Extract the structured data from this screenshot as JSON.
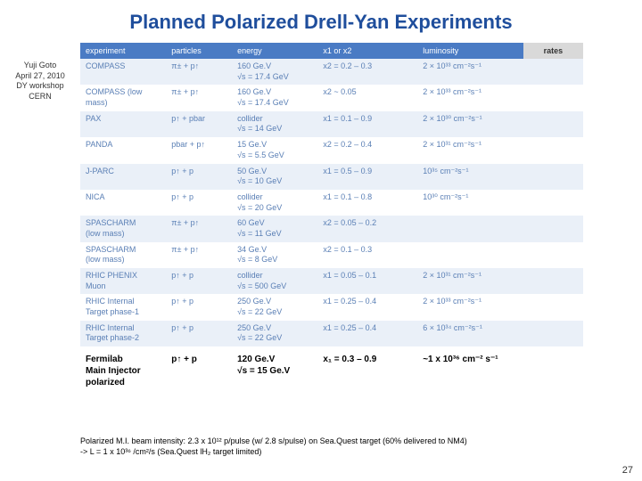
{
  "title": "Planned Polarized Drell-Yan Experiments",
  "sidebar": {
    "line1": "Yuji Goto",
    "line2": "April 27, 2010",
    "line3": "DY workshop",
    "line4": "CERN"
  },
  "headers": {
    "experiment": "experiment",
    "particles": "particles",
    "energy": "energy",
    "x": "x1 or x2",
    "luminosity": "luminosity",
    "rates": "rates"
  },
  "rows": [
    {
      "exp": "COMPASS",
      "part": "π± + p↑",
      "en": "160 Ge.V\n√s = 17.4 GeV",
      "x": "x2 = 0.2 – 0.3",
      "lum": "2 × 10³³ cm⁻²s⁻¹"
    },
    {
      "exp": "COMPASS (low mass)",
      "part": "π± + p↑",
      "en": "160 Ge.V\n√s = 17.4 GeV",
      "x": "x2 ~ 0.05",
      "lum": "2 × 10³³ cm⁻²s⁻¹"
    },
    {
      "exp": "PAX",
      "part": "p↑ + pbar",
      "en": "collider\n√s = 14 GeV",
      "x": "x1 = 0.1 – 0.9",
      "lum": "2 × 10³⁰ cm⁻²s⁻¹"
    },
    {
      "exp": "PANDA",
      "part": "pbar + p↑",
      "en": "15 Ge.V\n√s = 5.5 GeV",
      "x": "x2 = 0.2 – 0.4",
      "lum": "2 × 10³¹ cm⁻²s⁻¹"
    },
    {
      "exp": "J-PARC",
      "part": "p↑ + p",
      "en": "50 Ge.V\n√s = 10 GeV",
      "x": "x1 = 0.5 – 0.9",
      "lum": "10³⁵ cm⁻²s⁻¹"
    },
    {
      "exp": "NICA",
      "part": "p↑ + p",
      "en": "collider\n√s = 20 GeV",
      "x": "x1 = 0.1 – 0.8",
      "lum": "10³⁰ cm⁻²s⁻¹"
    },
    {
      "exp": "SPASCHARM\n(low mass)",
      "part": "π± + p↑",
      "en": "60 GeV\n√s = 11 GeV",
      "x": "x2 = 0.05 – 0.2",
      "lum": ""
    },
    {
      "exp": "SPASCHARM\n(low mass)",
      "part": "π± + p↑",
      "en": "34 Ge.V\n√s = 8 GeV",
      "x": "x2 = 0.1 – 0.3",
      "lum": ""
    },
    {
      "exp": "RHIC PHENIX\nMuon",
      "part": "p↑ + p",
      "en": "collider\n√s = 500 GeV",
      "x": "x1 = 0.05 – 0.1",
      "lum": "2 × 10³¹ cm⁻²s⁻¹"
    },
    {
      "exp": "RHIC Internal\nTarget phase-1",
      "part": "p↑ + p",
      "en": "250 Ge.V\n√s = 22 GeV",
      "x": "x1 = 0.25 – 0.4",
      "lum": "2 × 10³³ cm⁻²s⁻¹"
    },
    {
      "exp": "RHIC Internal\nTarget phase-2",
      "part": "p↑ + p",
      "en": "250 Ge.V\n√s = 22 GeV",
      "x": "x1 = 0.25 – 0.4",
      "lum": "6 × 10³⁴ cm⁻²s⁻¹"
    }
  ],
  "bottom": {
    "exp": "Fermilab\nMain Injector\npolarized",
    "part": "p↑ + p",
    "en": "120 Ge.V\n√s = 15 Ge.V",
    "x": "x₁ = 0.3 – 0.9",
    "lum": "~1 x 10³⁶ cm⁻² s⁻¹"
  },
  "footnote": "Polarized M.I. beam intensity: 2.3 x 10¹² p/pulse (w/ 2.8 s/pulse) on Sea.Quest target (60% delivered to NM4)\n -> L = 1 x 10³⁶ /cm²/s (Sea.Quest lH₂ target limited)",
  "pagenum": "27",
  "styling": {
    "title_color": "#1f4e9c",
    "header_bg": "#4a7bc4",
    "row_alt_bg": "#eaf0f8",
    "cell_text_color": "#5a7fb5",
    "rates_bg": "#d9d9d9",
    "title_fontsize": 22,
    "body_fontsize": 9
  }
}
